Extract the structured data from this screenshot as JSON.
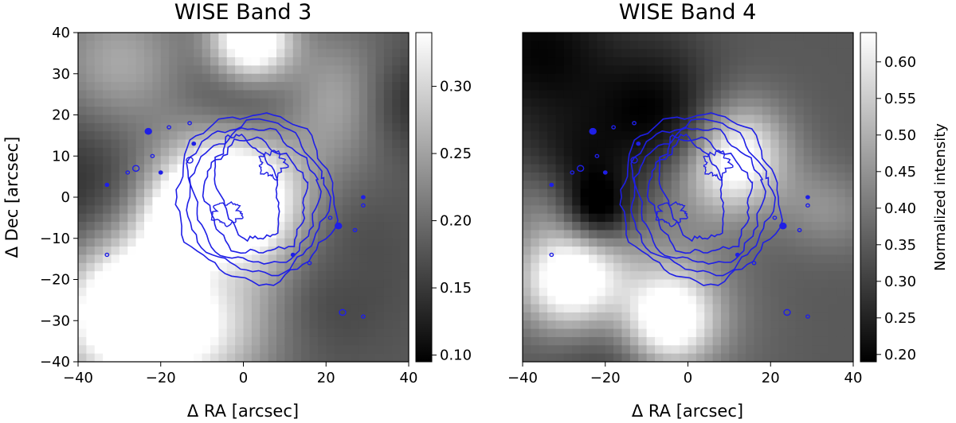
{
  "chart_data": [
    {
      "type": "heatmap",
      "title": "WISE Band 3",
      "xlabel": "Δ RA [arcsec]",
      "ylabel": "Δ Dec [arcsec]",
      "xlim": [
        -40,
        40
      ],
      "ylim": [
        -40,
        40
      ],
      "xticks": [
        "−40",
        "−20",
        "0",
        "20",
        "40"
      ],
      "yticks": [
        "40",
        "30",
        "20",
        "10",
        "0",
        "−10",
        "−20",
        "−30",
        "−40"
      ],
      "colorbar": {
        "range": [
          0.095,
          0.34
        ],
        "ticks": [
          "0.30",
          "0.25",
          "0.20",
          "0.15",
          "0.10"
        ],
        "label": ""
      },
      "colormap": "gray",
      "contour_color": "#1f1fe6",
      "bright_regions": [
        {
          "x": -28,
          "y": -28,
          "r": 12,
          "level": 0.95
        },
        {
          "x": -4,
          "y": 0,
          "r": 12,
          "level": 1.0
        },
        {
          "x": 2,
          "y": 38,
          "r": 7,
          "level": 0.95
        }
      ]
    },
    {
      "type": "heatmap",
      "title": "WISE Band 4",
      "xlabel": "Δ RA [arcsec]",
      "ylabel": "",
      "xlim": [
        -40,
        40
      ],
      "ylim": [
        -40,
        40
      ],
      "xticks": [
        "−40",
        "−20",
        "0",
        "20",
        "40"
      ],
      "yticks": [],
      "colorbar": {
        "range": [
          0.19,
          0.64
        ],
        "ticks": [
          "0.60",
          "0.55",
          "0.50",
          "0.45",
          "0.40",
          "0.35",
          "0.30",
          "0.25",
          "0.20"
        ],
        "label": "Normalized intensity"
      },
      "colormap": "gray",
      "contour_color": "#1f1fe6",
      "bright_regions": [
        {
          "x": 10,
          "y": 10,
          "r": 9,
          "level": 0.9
        },
        {
          "x": -28,
          "y": -20,
          "r": 9,
          "level": 0.9
        },
        {
          "x": -5,
          "y": -30,
          "r": 8,
          "level": 0.85
        }
      ]
    }
  ]
}
